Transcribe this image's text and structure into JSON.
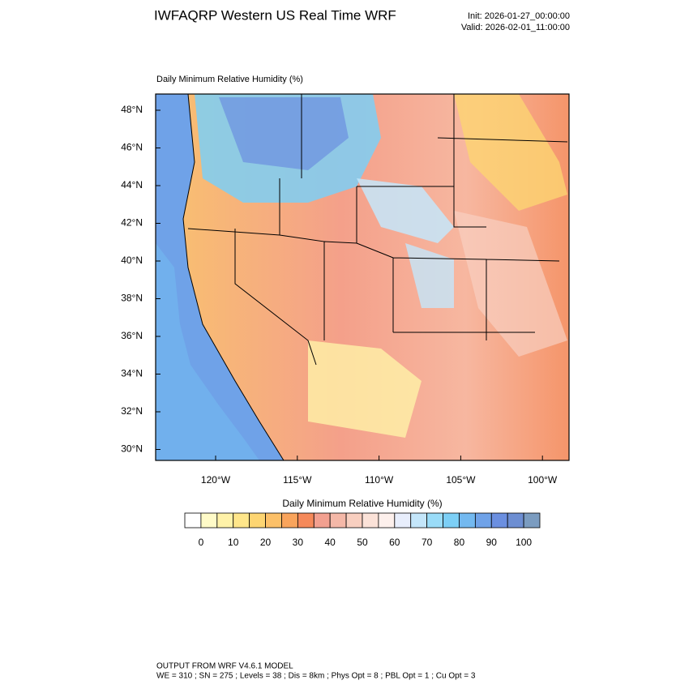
{
  "header": {
    "title": "IWFAQRP Western US Real Time WRF",
    "init": "Init: 2026-01-27_00:00:00",
    "valid": "Valid: 2026-02-01_11:00:00"
  },
  "map": {
    "title": "Daily Minimum Relative Humidity   (%)",
    "lat_labels": [
      "48°N",
      "46°N",
      "44°N",
      "42°N",
      "40°N",
      "38°N",
      "36°N",
      "34°N",
      "32°N",
      "30°N"
    ],
    "lon_labels": [
      "120°W",
      "115°W",
      "110°W",
      "105°W",
      "100°W"
    ]
  },
  "colorbar": {
    "title": "Daily Minimum Relative Humidity  (%)",
    "colors": [
      "#ffffff",
      "#fffbc8",
      "#fff2a8",
      "#ffe68a",
      "#fdd572",
      "#fcc068",
      "#f9a45c",
      "#f5895a",
      "#f2a090",
      "#f4b8a8",
      "#f8cfc0",
      "#fbe2d8",
      "#fdf0ec",
      "#e8eefc",
      "#c4e6fa",
      "#9adcf8",
      "#7ccff6",
      "#73b9f0",
      "#6fa2e8",
      "#6b8fe0",
      "#6d8ed2",
      "#7b9cc0"
    ],
    "labels": [
      0,
      10,
      20,
      30,
      40,
      50,
      60,
      70,
      80,
      90,
      100
    ]
  },
  "footer": {
    "line1": "OUTPUT FROM WRF V4.6.1 MODEL",
    "line2": "WE = 310 ; SN = 275 ; Levels = 38 ; Dis = 8km ; Phys Opt = 8 ; PBL Opt = 1 ; Cu Opt = 3"
  }
}
